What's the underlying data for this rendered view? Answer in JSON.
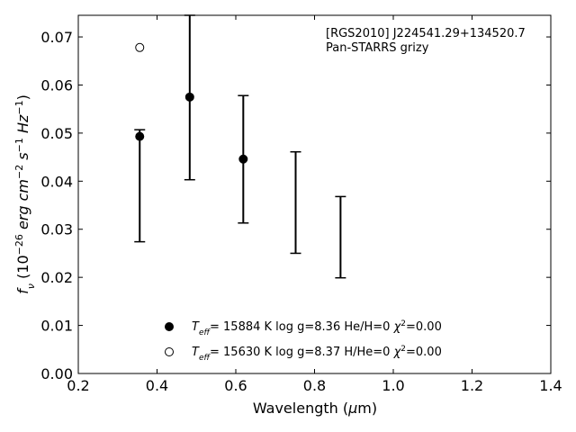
{
  "chart_data": {
    "type": "scatter",
    "title": "",
    "xlabel_parts": [
      "Wavelength (",
      "μ",
      "m)"
    ],
    "ylabel_parts": [
      "f",
      "ν",
      " (10",
      "−26",
      " erg cm",
      "−2",
      " s",
      "−1",
      " Hz",
      "−1",
      ")"
    ],
    "xlim": [
      0.2,
      1.4
    ],
    "ylim": [
      0.0,
      0.0745
    ],
    "xticks": [
      0.2,
      0.4,
      0.6,
      0.8,
      1.0,
      1.2,
      1.4
    ],
    "yticks": [
      0.0,
      0.01,
      0.02,
      0.03,
      0.04,
      0.05,
      0.06,
      0.07
    ],
    "xtick_labels": [
      "0.2",
      "0.4",
      "0.6",
      "0.8",
      "1.0",
      "1.2",
      "1.4"
    ],
    "ytick_labels": [
      "0.00",
      "0.01",
      "0.02",
      "0.03",
      "0.04",
      "0.05",
      "0.06",
      "0.07"
    ],
    "annotation_lines": [
      "[RGS2010] J224541.29+134520.7",
      "Pan-STARRS grizy"
    ],
    "observed_errorbars": [
      {
        "x": 0.356,
        "low": 0.0274,
        "high": 0.0507
      },
      {
        "x": 0.483,
        "low": 0.0403,
        "high": 0.0745
      },
      {
        "x": 0.619,
        "low": 0.0313,
        "high": 0.0578
      },
      {
        "x": 0.752,
        "low": 0.025,
        "high": 0.0461
      },
      {
        "x": 0.866,
        "low": 0.0199,
        "high": 0.0368
      }
    ],
    "series": [
      {
        "marker": "filled",
        "x": [
          0.356,
          0.483,
          0.619
        ],
        "y": [
          0.0493,
          0.0575,
          0.0446
        ],
        "legend": {
          "teff_symbol": "T",
          "teff_sub": "eff",
          "rest": "= 15884 K  log g=8.36  He/H=0  ",
          "chi": "χ",
          "chi_sup": "2",
          "chi_rest": "=0.00"
        }
      },
      {
        "marker": "open",
        "x": [
          0.356
        ],
        "y": [
          0.0678
        ],
        "legend": {
          "teff_symbol": "T",
          "teff_sub": "eff",
          "rest": "= 15630 K  log g=8.37  H/He=0  ",
          "chi": "χ",
          "chi_sup": "2",
          "chi_rest": "=0.00"
        }
      }
    ],
    "legend_position": "lower-center",
    "grid": false
  }
}
